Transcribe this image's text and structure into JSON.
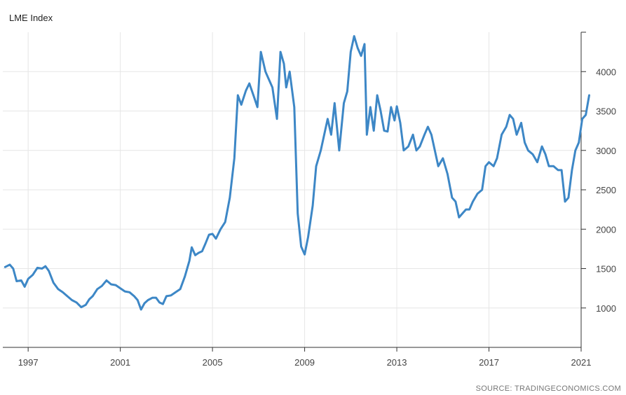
{
  "chart_data": {
    "type": "line",
    "title": "LME Index",
    "xlabel": "",
    "ylabel": "",
    "x_ticks": [
      "1997",
      "2001",
      "2005",
      "2009",
      "2013",
      "2017",
      "2021"
    ],
    "y_ticks": [
      "1000",
      "1500",
      "2000",
      "2500",
      "3000",
      "3500",
      "4000"
    ],
    "xlim": [
      1995.9,
      2021.0
    ],
    "ylim": [
      500,
      4500
    ],
    "grid": true,
    "line_color": "#3d87c6",
    "source": "SOURCE: TRADINGECONOMICS.COM",
    "series": [
      {
        "points": [
          [
            1996.0,
            1520
          ],
          [
            1996.2,
            1550
          ],
          [
            1996.35,
            1500
          ],
          [
            1996.5,
            1340
          ],
          [
            1996.7,
            1350
          ],
          [
            1996.85,
            1270
          ],
          [
            1997.0,
            1370
          ],
          [
            1997.2,
            1420
          ],
          [
            1997.4,
            1510
          ],
          [
            1997.6,
            1500
          ],
          [
            1997.75,
            1530
          ],
          [
            1997.9,
            1470
          ],
          [
            1998.1,
            1320
          ],
          [
            1998.3,
            1240
          ],
          [
            1998.5,
            1200
          ],
          [
            1998.7,
            1150
          ],
          [
            1998.9,
            1100
          ],
          [
            1999.1,
            1070
          ],
          [
            1999.3,
            1010
          ],
          [
            1999.5,
            1040
          ],
          [
            1999.65,
            1110
          ],
          [
            1999.8,
            1150
          ],
          [
            2000.0,
            1240
          ],
          [
            2000.2,
            1280
          ],
          [
            2000.4,
            1350
          ],
          [
            2000.6,
            1300
          ],
          [
            2000.8,
            1290
          ],
          [
            2001.0,
            1250
          ],
          [
            2001.2,
            1210
          ],
          [
            2001.4,
            1200
          ],
          [
            2001.6,
            1150
          ],
          [
            2001.75,
            1100
          ],
          [
            2001.9,
            980
          ],
          [
            2002.05,
            1060
          ],
          [
            2002.2,
            1100
          ],
          [
            2002.4,
            1130
          ],
          [
            2002.55,
            1130
          ],
          [
            2002.7,
            1070
          ],
          [
            2002.85,
            1050
          ],
          [
            2003.0,
            1150
          ],
          [
            2003.2,
            1160
          ],
          [
            2003.4,
            1200
          ],
          [
            2003.6,
            1240
          ],
          [
            2003.8,
            1400
          ],
          [
            2004.0,
            1600
          ],
          [
            2004.1,
            1770
          ],
          [
            2004.25,
            1670
          ],
          [
            2004.4,
            1700
          ],
          [
            2004.55,
            1720
          ],
          [
            2004.7,
            1820
          ],
          [
            2004.85,
            1930
          ],
          [
            2005.0,
            1940
          ],
          [
            2005.15,
            1880
          ],
          [
            2005.35,
            2000
          ],
          [
            2005.55,
            2090
          ],
          [
            2005.75,
            2400
          ],
          [
            2005.95,
            2900
          ],
          [
            2006.1,
            3700
          ],
          [
            2006.25,
            3580
          ],
          [
            2006.45,
            3760
          ],
          [
            2006.6,
            3850
          ],
          [
            2006.8,
            3680
          ],
          [
            2006.95,
            3550
          ],
          [
            2007.1,
            4250
          ],
          [
            2007.3,
            4000
          ],
          [
            2007.45,
            3900
          ],
          [
            2007.6,
            3800
          ],
          [
            2007.8,
            3400
          ],
          [
            2007.95,
            4250
          ],
          [
            2008.1,
            4100
          ],
          [
            2008.2,
            3800
          ],
          [
            2008.35,
            4000
          ],
          [
            2008.55,
            3550
          ],
          [
            2008.7,
            2200
          ],
          [
            2008.85,
            1780
          ],
          [
            2009.0,
            1680
          ],
          [
            2009.15,
            1900
          ],
          [
            2009.35,
            2300
          ],
          [
            2009.5,
            2800
          ],
          [
            2009.7,
            3000
          ],
          [
            2009.85,
            3200
          ],
          [
            2010.0,
            3400
          ],
          [
            2010.15,
            3200
          ],
          [
            2010.3,
            3600
          ],
          [
            2010.5,
            3000
          ],
          [
            2010.7,
            3600
          ],
          [
            2010.85,
            3750
          ],
          [
            2011.0,
            4250
          ],
          [
            2011.15,
            4450
          ],
          [
            2011.3,
            4300
          ],
          [
            2011.45,
            4200
          ],
          [
            2011.6,
            4350
          ],
          [
            2011.7,
            3200
          ],
          [
            2011.85,
            3550
          ],
          [
            2012.0,
            3250
          ],
          [
            2012.15,
            3700
          ],
          [
            2012.3,
            3500
          ],
          [
            2012.45,
            3250
          ],
          [
            2012.6,
            3240
          ],
          [
            2012.75,
            3550
          ],
          [
            2012.9,
            3380
          ],
          [
            2013.0,
            3560
          ],
          [
            2013.15,
            3350
          ],
          [
            2013.3,
            3000
          ],
          [
            2013.5,
            3050
          ],
          [
            2013.7,
            3200
          ],
          [
            2013.85,
            3000
          ],
          [
            2014.0,
            3050
          ],
          [
            2014.2,
            3200
          ],
          [
            2014.35,
            3300
          ],
          [
            2014.5,
            3200
          ],
          [
            2014.65,
            3000
          ],
          [
            2014.8,
            2800
          ],
          [
            2015.0,
            2900
          ],
          [
            2015.2,
            2700
          ],
          [
            2015.4,
            2400
          ],
          [
            2015.55,
            2350
          ],
          [
            2015.7,
            2150
          ],
          [
            2015.85,
            2200
          ],
          [
            2016.0,
            2250
          ],
          [
            2016.15,
            2250
          ],
          [
            2016.3,
            2350
          ],
          [
            2016.5,
            2450
          ],
          [
            2016.7,
            2500
          ],
          [
            2016.85,
            2800
          ],
          [
            2017.0,
            2850
          ],
          [
            2017.2,
            2800
          ],
          [
            2017.35,
            2900
          ],
          [
            2017.55,
            3200
          ],
          [
            2017.75,
            3300
          ],
          [
            2017.9,
            3450
          ],
          [
            2018.05,
            3400
          ],
          [
            2018.2,
            3200
          ],
          [
            2018.4,
            3350
          ],
          [
            2018.55,
            3100
          ],
          [
            2018.7,
            3000
          ],
          [
            2018.9,
            2950
          ],
          [
            2019.1,
            2850
          ],
          [
            2019.3,
            3050
          ],
          [
            2019.45,
            2950
          ],
          [
            2019.6,
            2800
          ],
          [
            2019.8,
            2800
          ],
          [
            2020.0,
            2750
          ],
          [
            2020.15,
            2750
          ],
          [
            2020.3,
            2350
          ],
          [
            2020.45,
            2400
          ],
          [
            2020.6,
            2750
          ],
          [
            2020.75,
            3000
          ],
          [
            2020.9,
            3100
          ],
          [
            2021.05,
            3400
          ],
          [
            2021.2,
            3450
          ],
          [
            2021.35,
            3700
          ]
        ]
      }
    ]
  }
}
